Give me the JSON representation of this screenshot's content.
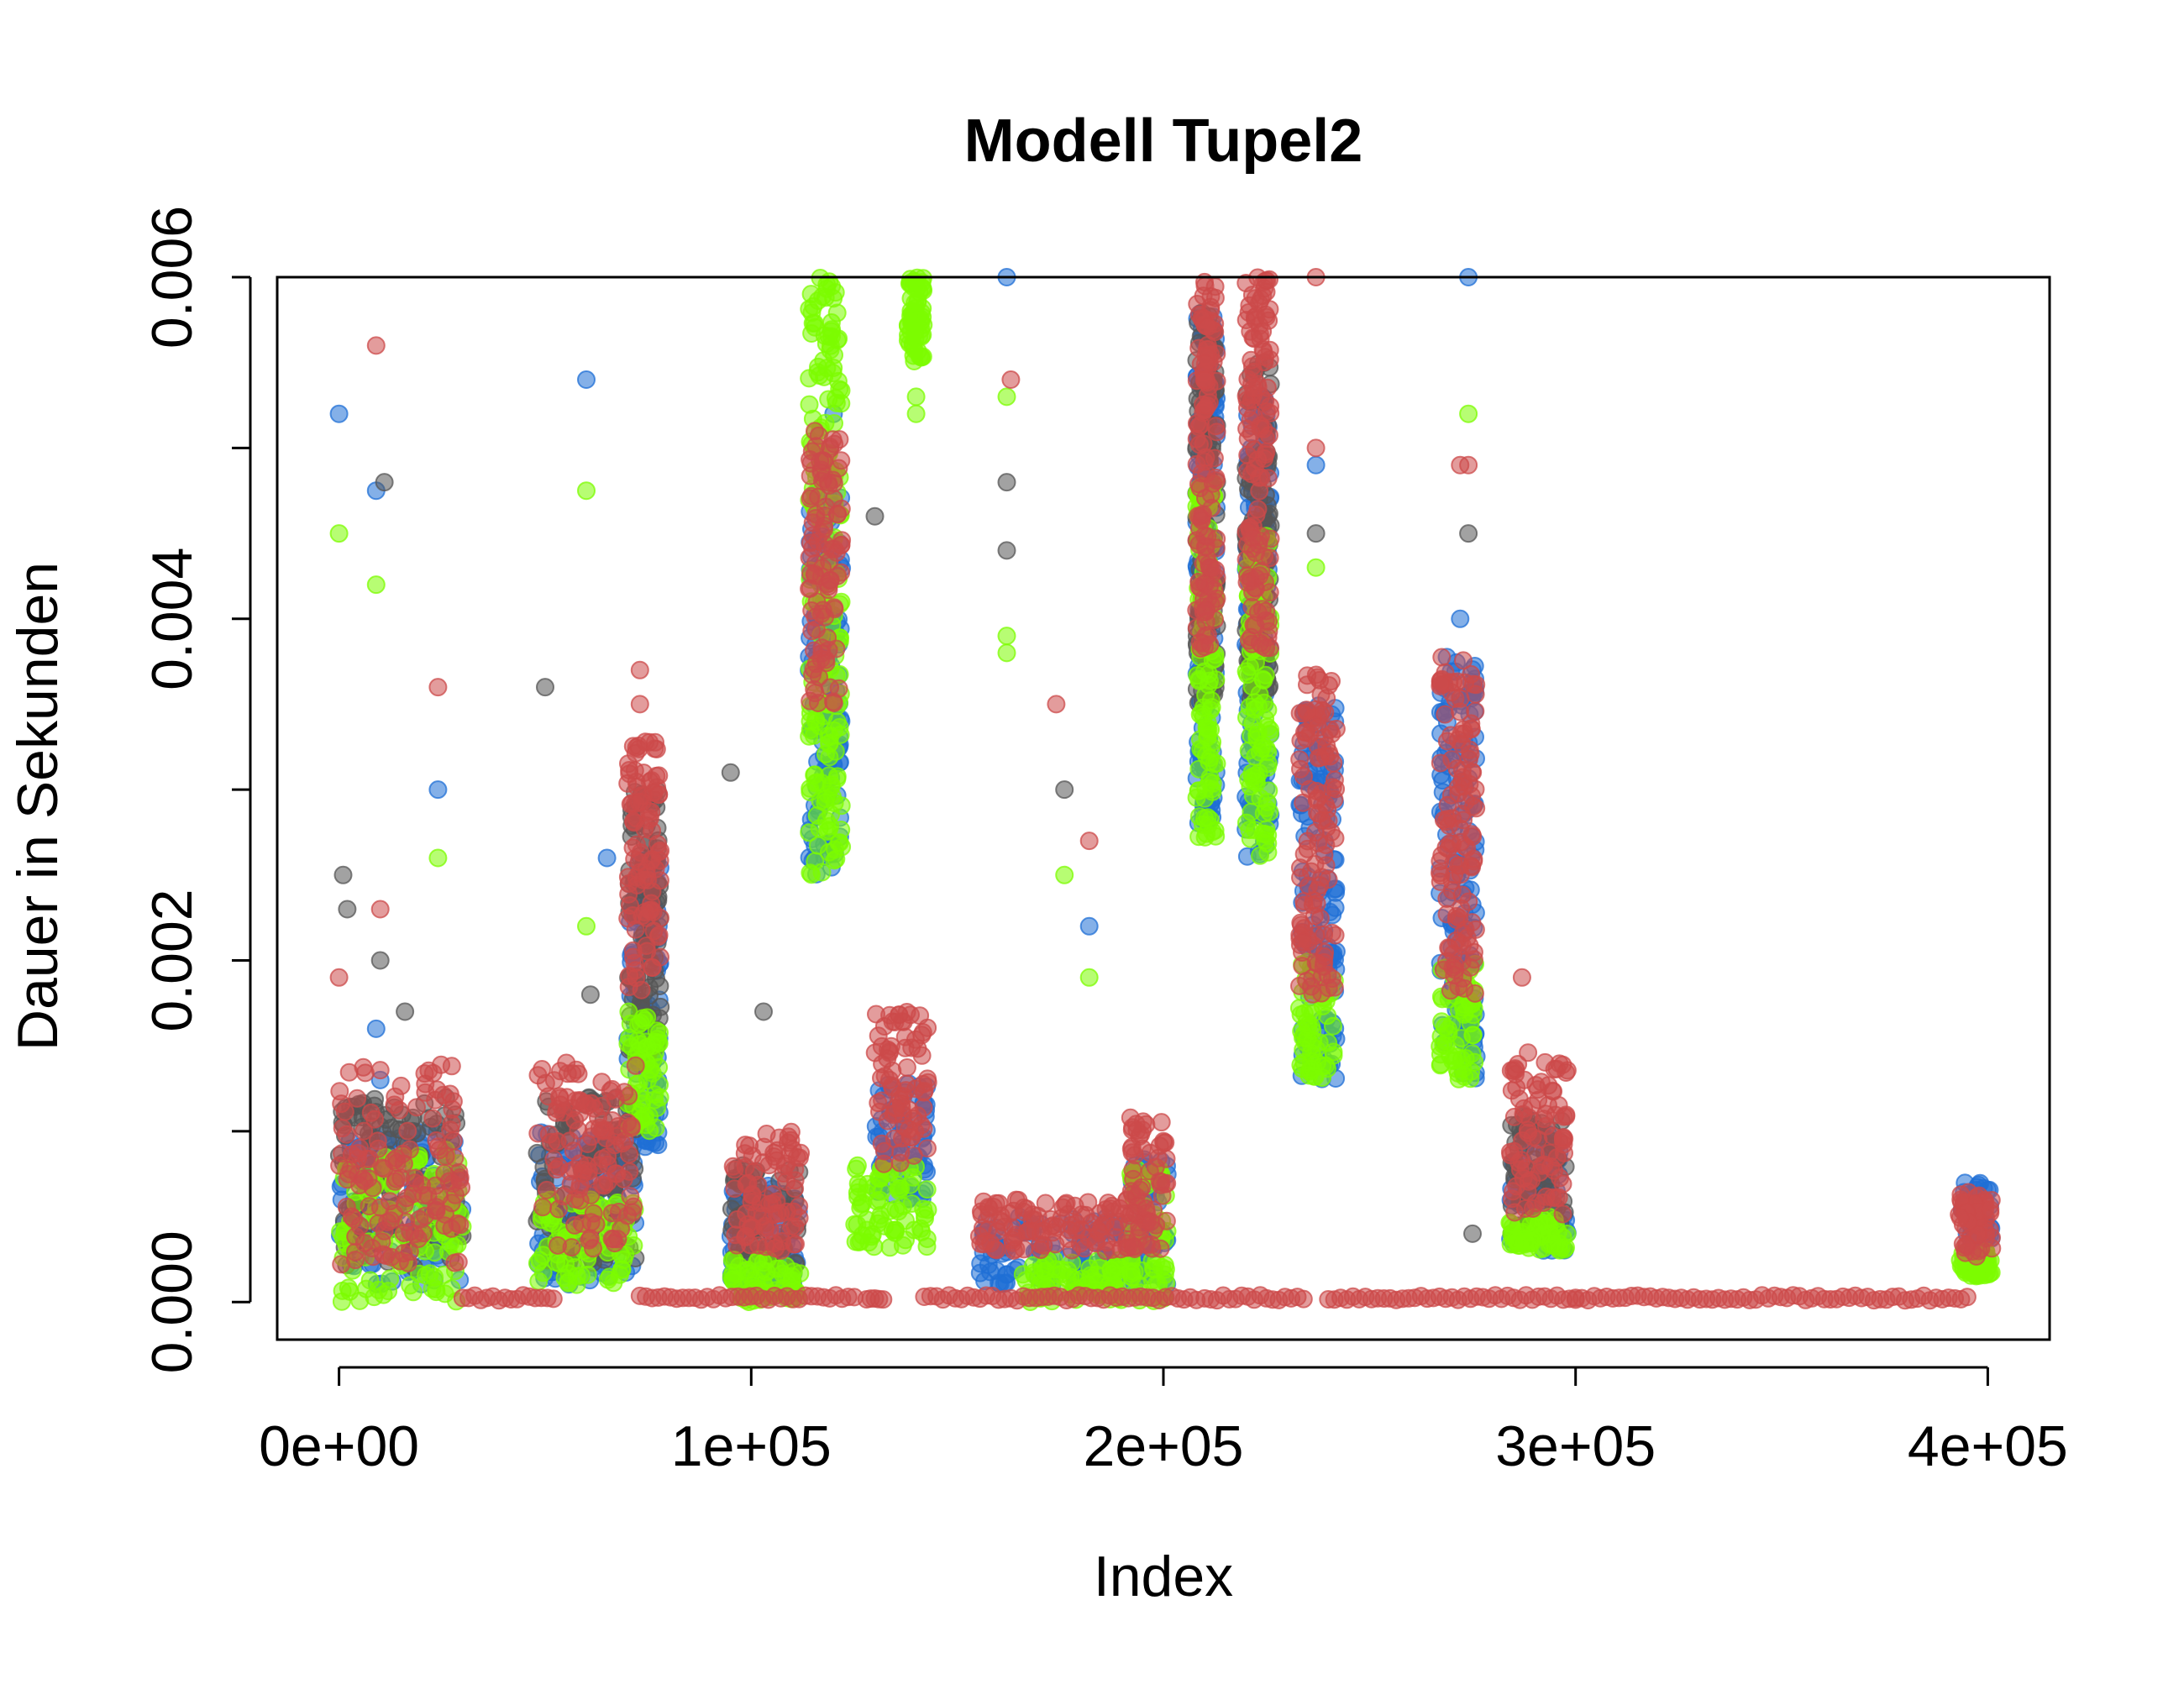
{
  "chart_data": {
    "type": "scatter",
    "title": "Modell Tupel2",
    "xlabel": "Index",
    "ylabel": "Dauer in Sekunden",
    "xlim": [
      -15000,
      415000
    ],
    "ylim": [
      -0.00022,
      0.006
    ],
    "x_ticks": [
      0,
      100000,
      200000,
      300000,
      400000
    ],
    "x_tick_labels": [
      "0e+00",
      "1e+05",
      "2e+05",
      "3e+05",
      "4e+05"
    ],
    "y_ticks": [
      0,
      0.001,
      0.002,
      0.003,
      0.004,
      0.005,
      0.006
    ],
    "y_tick_labels": [
      "0.000",
      "",
      "0.002",
      "",
      "0.004",
      "",
      "0.006"
    ],
    "grid": false,
    "legend": "none",
    "series": [
      {
        "color": "#1f6fd6",
        "points": [
          [
            0,
            0.0052
          ],
          [
            9000,
            0.00475
          ],
          [
            9000,
            0.0016
          ],
          [
            10000,
            0.0013
          ],
          [
            24000,
            0.003
          ],
          [
            60000,
            0.0054
          ],
          [
            65000,
            0.0026
          ],
          [
            120000,
            0.0052
          ],
          [
            162000,
            0.006
          ],
          [
            182000,
            0.0022
          ],
          [
            237000,
            0.0049
          ],
          [
            274000,
            0.006
          ],
          [
            272000,
            0.004
          ]
        ],
        "clusters": [
          {
            "x": [
              0,
              30000
            ],
            "y": [
              0.0001,
              0.001
            ]
          },
          {
            "x": [
              48000,
              72000
            ],
            "y": [
              0.0001,
              0.001
            ]
          },
          {
            "x": [
              70000,
              78000
            ],
            "y": [
              0.0009,
              0.0026
            ]
          },
          {
            "x": [
              95000,
              112000
            ],
            "y": [
              0.0001,
              0.0007
            ]
          },
          {
            "x": [
              114000,
              122000
            ],
            "y": [
              0.0025,
              0.0048
            ]
          },
          {
            "x": [
              130000,
              143000
            ],
            "y": [
              0.0006,
              0.0013
            ]
          },
          {
            "x": [
              155000,
              192000
            ],
            "y": [
              0.0001,
              0.0005
            ]
          },
          {
            "x": [
              192000,
              201000
            ],
            "y": [
              0.0001,
              0.0009
            ]
          },
          {
            "x": [
              208000,
              213000
            ],
            "y": [
              0.0028,
              0.0058
            ]
          },
          {
            "x": [
              220000,
              226000
            ],
            "y": [
              0.0026,
              0.0053
            ]
          },
          {
            "x": [
              233000,
              242000
            ],
            "y": [
              0.0013,
              0.0035
            ]
          },
          {
            "x": [
              267000,
              276000
            ],
            "y": [
              0.0013,
              0.0038
            ]
          },
          {
            "x": [
              284000,
              298000
            ],
            "y": [
              0.0003,
              0.001
            ]
          },
          {
            "x": [
              393000,
              401000
            ],
            "y": [
              0.0002,
              0.0007
            ]
          }
        ]
      },
      {
        "color": "#555555",
        "points": [
          [
            1000,
            0.0025
          ],
          [
            2000,
            0.0023
          ],
          [
            11000,
            0.0048
          ],
          [
            10000,
            0.002
          ],
          [
            16000,
            0.0017
          ],
          [
            50000,
            0.0036
          ],
          [
            61000,
            0.0018
          ],
          [
            95000,
            0.0031
          ],
          [
            130000,
            0.0046
          ],
          [
            98000,
            0.0008
          ],
          [
            103000,
            0.0017
          ],
          [
            162000,
            0.0048
          ],
          [
            162000,
            0.0044
          ],
          [
            176000,
            0.003
          ],
          [
            237000,
            0.0045
          ],
          [
            274000,
            0.0045
          ],
          [
            275000,
            0.0004
          ]
        ],
        "clusters": [
          {
            "x": [
              0,
              30000
            ],
            "y": [
              0.0002,
              0.0012
            ]
          },
          {
            "x": [
              48000,
              72000
            ],
            "y": [
              0.0002,
              0.0012
            ]
          },
          {
            "x": [
              70000,
              78000
            ],
            "y": [
              0.0014,
              0.003
            ]
          },
          {
            "x": [
              95000,
              112000
            ],
            "y": [
              0.0002,
              0.0008
            ]
          },
          {
            "x": [
              208000,
              213000
            ],
            "y": [
              0.0035,
              0.0058
            ]
          },
          {
            "x": [
              220000,
              226000
            ],
            "y": [
              0.0035,
              0.0055
            ]
          },
          {
            "x": [
              284000,
              298000
            ],
            "y": [
              0.0004,
              0.0011
            ]
          }
        ]
      },
      {
        "color": "#7cfc00",
        "points": [
          [
            0,
            0.0045
          ],
          [
            9000,
            0.0042
          ],
          [
            24000,
            0.0026
          ],
          [
            60000,
            0.00475
          ],
          [
            60000,
            0.0022
          ],
          [
            140000,
            0.0053
          ],
          [
            140000,
            0.0052
          ],
          [
            162000,
            0.0053
          ],
          [
            162000,
            0.0039
          ],
          [
            162000,
            0.0038
          ],
          [
            176000,
            0.0025
          ],
          [
            182000,
            0.0019
          ],
          [
            237000,
            0.0043
          ],
          [
            274000,
            0.0052
          ]
        ],
        "clusters": [
          {
            "x": [
              0,
              30000
            ],
            "y": [
              0.0,
              0.0009
            ]
          },
          {
            "x": [
              48000,
              72000
            ],
            "y": [
              0.0001,
              0.0006
            ]
          },
          {
            "x": [
              70000,
              78000
            ],
            "y": [
              0.001,
              0.0017
            ]
          },
          {
            "x": [
              95000,
              112000
            ],
            "y": [
              0.0,
              0.00025
            ]
          },
          {
            "x": [
              114000,
              122000
            ],
            "y": [
              0.0025,
              0.006
            ]
          },
          {
            "x": [
              125000,
              143000
            ],
            "y": [
              0.0003,
              0.0008
            ]
          },
          {
            "x": [
              138000,
              142000
            ],
            "y": [
              0.0055,
              0.006
            ]
          },
          {
            "x": [
              165000,
              190000
            ],
            "y": [
              0.0,
              0.00025
            ]
          },
          {
            "x": [
              192000,
              201000
            ],
            "y": [
              0.0,
              0.0008
            ]
          },
          {
            "x": [
              208000,
              213000
            ],
            "y": [
              0.0027,
              0.0048
            ]
          },
          {
            "x": [
              220000,
              226000
            ],
            "y": [
              0.0026,
              0.0045
            ]
          },
          {
            "x": [
              233000,
              242000
            ],
            "y": [
              0.0013,
              0.002
            ]
          },
          {
            "x": [
              267000,
              276000
            ],
            "y": [
              0.0013,
              0.002
            ]
          },
          {
            "x": [
              284000,
              298000
            ],
            "y": [
              0.0003,
              0.0005
            ]
          },
          {
            "x": [
              393000,
              401000
            ],
            "y": [
              0.00015,
              0.0003
            ]
          }
        ]
      },
      {
        "color": "#cc4a4a",
        "points": [
          [
            9000,
            0.0056
          ],
          [
            24000,
            0.0036
          ],
          [
            73000,
            0.0037
          ],
          [
            73000,
            0.0035
          ],
          [
            174000,
            0.0035
          ],
          [
            182000,
            0.0027
          ],
          [
            237000,
            0.006
          ],
          [
            237000,
            0.005
          ],
          [
            272000,
            0.0049
          ],
          [
            274000,
            0.0049
          ],
          [
            287000,
            0.0019
          ],
          [
            163000,
            0.0054
          ],
          [
            0,
            0.0019
          ],
          [
            10000,
            0.0023
          ]
        ],
        "clusters": [
          {
            "x": [
              0,
              30000
            ],
            "y": [
              0.0002,
              0.0014
            ]
          },
          {
            "x": [
              48000,
              72000
            ],
            "y": [
              0.0003,
              0.0014
            ]
          },
          {
            "x": [
              70000,
              78000
            ],
            "y": [
              0.0018,
              0.0033
            ]
          },
          {
            "x": [
              95000,
              112000
            ],
            "y": [
              0.0003,
              0.001
            ]
          },
          {
            "x": [
              114000,
              122000
            ],
            "y": [
              0.0035,
              0.0051
            ]
          },
          {
            "x": [
              130000,
              143000
            ],
            "y": [
              0.0008,
              0.0017
            ]
          },
          {
            "x": [
              155000,
              192000
            ],
            "y": [
              0.0003,
              0.0006
            ]
          },
          {
            "x": [
              192000,
              201000
            ],
            "y": [
              0.0003,
              0.0011
            ]
          },
          {
            "x": [
              208000,
              213000
            ],
            "y": [
              0.0038,
              0.006
            ]
          },
          {
            "x": [
              220000,
              226000
            ],
            "y": [
              0.0038,
              0.006
            ]
          },
          {
            "x": [
              233000,
              242000
            ],
            "y": [
              0.0018,
              0.0037
            ]
          },
          {
            "x": [
              267000,
              276000
            ],
            "y": [
              0.0018,
              0.0038
            ]
          },
          {
            "x": [
              284000,
              298000
            ],
            "y": [
              0.0005,
              0.0015
            ]
          },
          {
            "x": [
              393000,
              401000
            ],
            "y": [
              0.00025,
              0.00065
            ]
          }
        ]
      },
      {
        "color": "#cc4a4a",
        "baseline": [
          [
            30000,
            52000
          ],
          [
            73000,
            125000
          ],
          [
            128000,
            132000
          ],
          [
            142000,
            208000
          ],
          [
            210000,
            234000
          ],
          [
            240000,
            300000
          ],
          [
            300000,
            395000
          ]
        ]
      }
    ]
  }
}
